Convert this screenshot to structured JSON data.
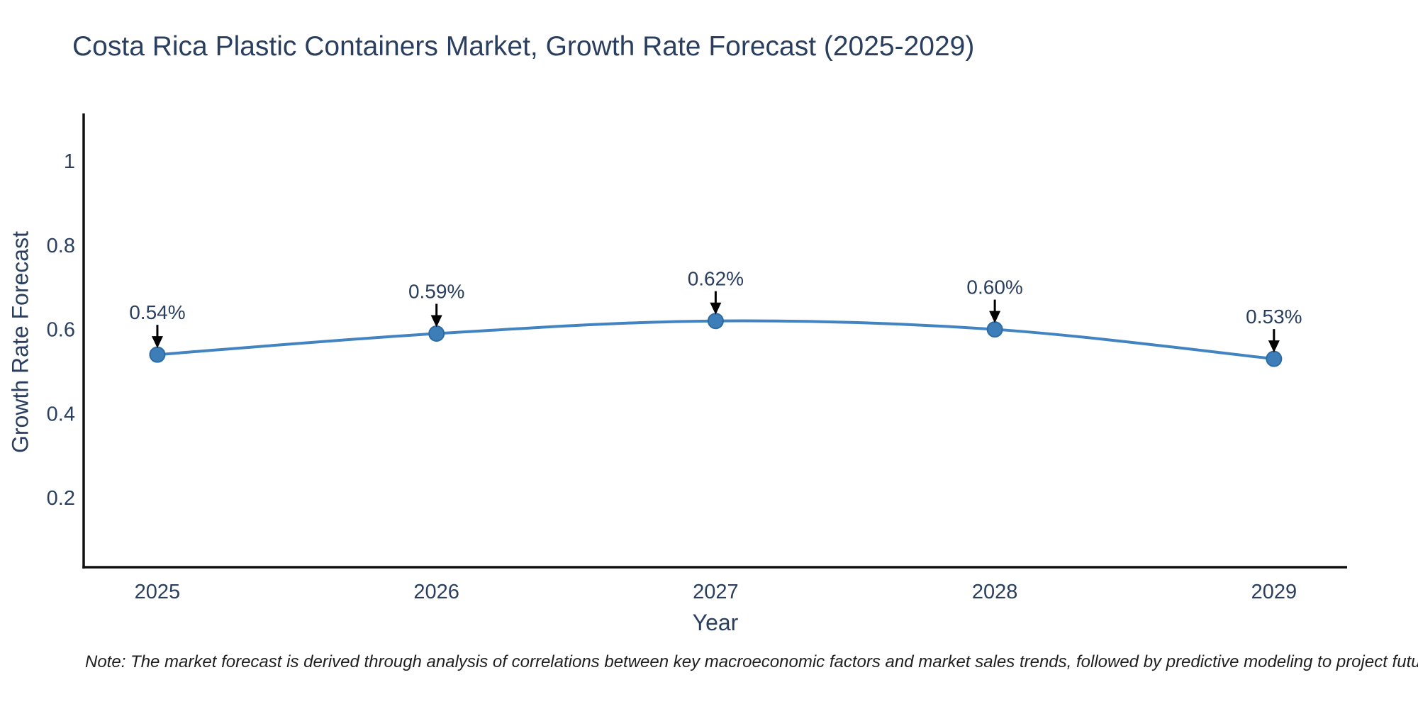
{
  "chart_data": {
    "type": "line",
    "title": "Costa Rica Plastic Containers Market, Growth Rate Forecast (2025-2029)",
    "xlabel": "Year",
    "ylabel": "Growth Rate Forecast",
    "x": [
      2025,
      2026,
      2027,
      2028,
      2029
    ],
    "series": [
      {
        "name": "Growth Rate Forecast",
        "values": [
          0.54,
          0.59,
          0.62,
          0.6,
          0.53
        ]
      }
    ],
    "point_labels": [
      "0.54%",
      "0.59%",
      "0.62%",
      "0.60%",
      "0.53%"
    ],
    "xticks": [
      "2025",
      "2026",
      "2027",
      "2028",
      "2029"
    ],
    "yticks": [
      0.2,
      0.4,
      0.6,
      0.8,
      1
    ],
    "ytick_labels": [
      "0.2",
      "0.4",
      "0.6",
      "0.8",
      "1"
    ],
    "xlim": [
      2024.736,
      2029.262
    ],
    "ylim": [
      0.035,
      1.113
    ],
    "grid": false,
    "legend": "none",
    "line_shape": "spline",
    "colors": {
      "line": "#4184c1",
      "marker_fill": "#3d7eb8",
      "marker_edge": "#2f6ba3",
      "arrow": "#000000",
      "axis_line": "#101010",
      "text": "#2a3f5f",
      "note_text": "#1f1f1f"
    }
  },
  "note": "Note: The market forecast is derived through analysis of correlations between key macroeconomic factors and market sales trends, followed by predictive modeling to project future sales"
}
